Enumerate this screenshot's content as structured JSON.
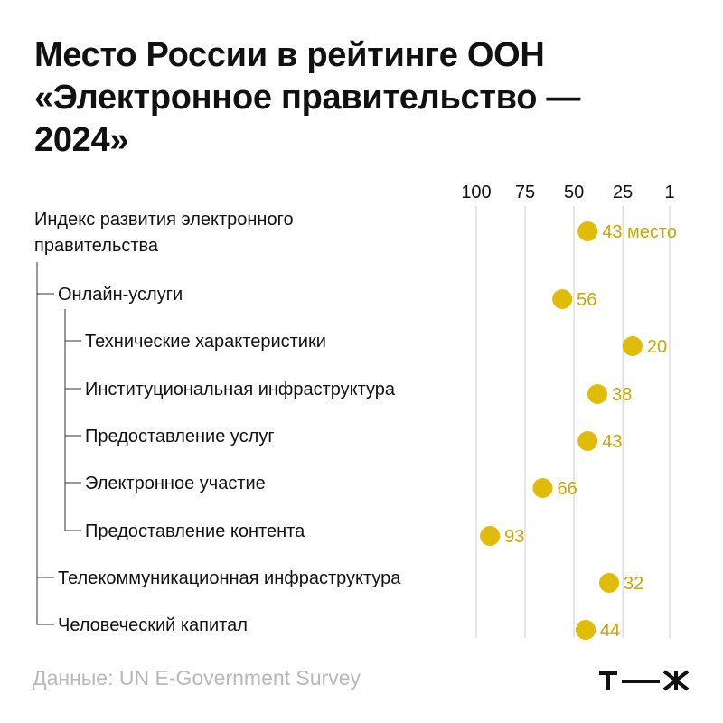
{
  "title_lines": [
    "Место России в рейтинге ООН",
    "«Электронное правительство —",
    "2024»"
  ],
  "source": "Данные: UN E-Government Survey",
  "logo_text": "т—ж",
  "colors": {
    "dot": "#e0bb07",
    "label": "#c9a600",
    "grid": "#cfcfcf",
    "text": "#111111",
    "tree": "#333333"
  },
  "chart_data": {
    "type": "scatter",
    "title": "Место России в рейтинге ООН «Электронное правительство — 2024»",
    "x_axis": {
      "reversed": true,
      "range": [
        1,
        100
      ],
      "ticks": [
        100,
        75,
        50,
        25,
        1
      ],
      "position": "top",
      "grid": true
    },
    "categories": [
      {
        "label": "Индекс развития электронного",
        "label2": "правительства",
        "value": 43,
        "value_label": "43 место",
        "level": 0
      },
      {
        "label": "Онлайн-услуги",
        "value": 56,
        "value_label": "56",
        "level": 1
      },
      {
        "label": "Технические характеристики",
        "value": 20,
        "value_label": "20",
        "level": 2
      },
      {
        "label": "Институциональная инфраструктура",
        "value": 38,
        "value_label": "38",
        "level": 2
      },
      {
        "label": "Предоставление услуг",
        "value": 43,
        "value_label": "43",
        "level": 2
      },
      {
        "label": "Электронное участие",
        "value": 66,
        "value_label": "66",
        "level": 2
      },
      {
        "label": "Предоставление контента",
        "value": 93,
        "value_label": "93",
        "level": 2
      },
      {
        "label": "Телекоммуникационная инфраструктура",
        "value": 32,
        "value_label": "32",
        "level": 1
      },
      {
        "label": "Человеческий капитал",
        "value": 44,
        "value_label": "44",
        "level": 1
      }
    ]
  }
}
